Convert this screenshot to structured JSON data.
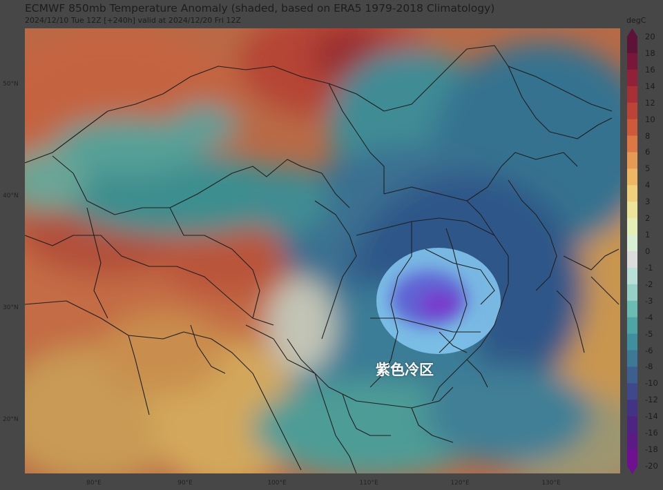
{
  "title": "ECMWF 850mb Temperature Anomaly (shaded, based on ERA5 1979-2018 Climatology)",
  "subtitle": "2024/12/10 Tue 12Z [+240h] valid at 2024/12/20 Fri 12Z",
  "latitude_labels": [
    "50°N",
    "40°N",
    "30°N",
    "20°N"
  ],
  "longitude_labels": [
    "80°E",
    "90°E",
    "100°E",
    "110°E",
    "120°E",
    "130°E"
  ],
  "colorbar": {
    "unit": "degC",
    "ticks": [
      "20",
      "18",
      "16",
      "14",
      "12",
      "10",
      "8",
      "6",
      "5",
      "4",
      "3",
      "2",
      "1",
      "0",
      "-1",
      "-2",
      "-3",
      "-4",
      "-5",
      "-6",
      "-8",
      "-10",
      "-12",
      "-14",
      "-16",
      "-18",
      "-20"
    ],
    "colors": [
      "#5e1238",
      "#781739",
      "#912038",
      "#a92f37",
      "#bd4237",
      "#cf5a3b",
      "#dd7846",
      "#e69a55",
      "#edb766",
      "#f0d07c",
      "#eee39a",
      "#e5eeb6",
      "#d9efd3",
      "#dcdcdc",
      "#b9dfd9",
      "#96d0c6",
      "#6dbcb3",
      "#4ea5a6",
      "#408f9f",
      "#3d7996",
      "#3d5f8f",
      "#3e488a",
      "#433384",
      "#4d2482",
      "#5b1a86",
      "#6e1091"
    ]
  },
  "annotation": {
    "label": "紫色冷区",
    "highlight_color": "#76c3f2",
    "core_color": "#7a34cc"
  },
  "palette": {
    "warm": "#c3623f",
    "hot": "#a33d33",
    "mild": "#d7a45a",
    "cool": "#3e8c98",
    "cold": "#2f5c86"
  }
}
